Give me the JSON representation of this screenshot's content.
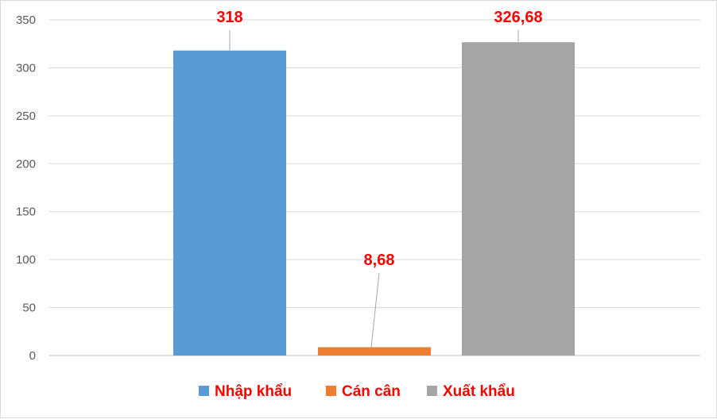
{
  "chart_data": {
    "type": "bar",
    "categories": [
      "Nhập khẩu",
      "Cán cân",
      "Xuất khẩu"
    ],
    "values": [
      318,
      8.68,
      326.68
    ],
    "data_labels": [
      "318",
      "8,68",
      "326,68"
    ],
    "colors": [
      "#5b9bd5",
      "#ed7d31",
      "#a5a5a5"
    ],
    "label_color": "#ff0000",
    "ylim": [
      0,
      350
    ],
    "yticks": [
      0,
      50,
      100,
      150,
      200,
      250,
      300,
      350
    ],
    "ytick_labels": [
      "0",
      "50",
      "100",
      "150",
      "200",
      "250",
      "300",
      "350"
    ],
    "grid": true,
    "legend_position": "bottom",
    "title": "",
    "xlabel": "",
    "ylabel": ""
  }
}
